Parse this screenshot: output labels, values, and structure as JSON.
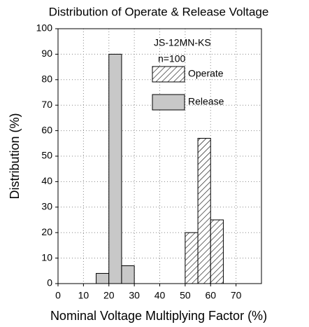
{
  "chart_data": {
    "type": "histogram",
    "title": "Distribution of Operate & Release Voltage",
    "x_label": "Nominal Voltage Multiplying Factor (%)",
    "y_label": "Distribution (%)",
    "annotations": [
      "JS-12MN-KS",
      "n=100"
    ],
    "series": [
      {
        "name": "Operate",
        "pattern": "hatch",
        "color": "#ffffff",
        "bins": [
          50,
          55,
          60,
          65
        ],
        "values": [
          20,
          57,
          25
        ]
      },
      {
        "name": "Release",
        "pattern": "solid",
        "color": "#c8c8c8",
        "bins": [
          15,
          20,
          25,
          30
        ],
        "values": [
          4,
          90,
          7
        ]
      }
    ],
    "xlim": [
      0,
      80
    ],
    "xticks": [
      0,
      10,
      20,
      30,
      40,
      50,
      60,
      70
    ],
    "ylim": [
      0,
      100
    ],
    "yticks": [
      0,
      10,
      20,
      30,
      40,
      50,
      60,
      70,
      80,
      90,
      100
    ],
    "grid": true
  }
}
